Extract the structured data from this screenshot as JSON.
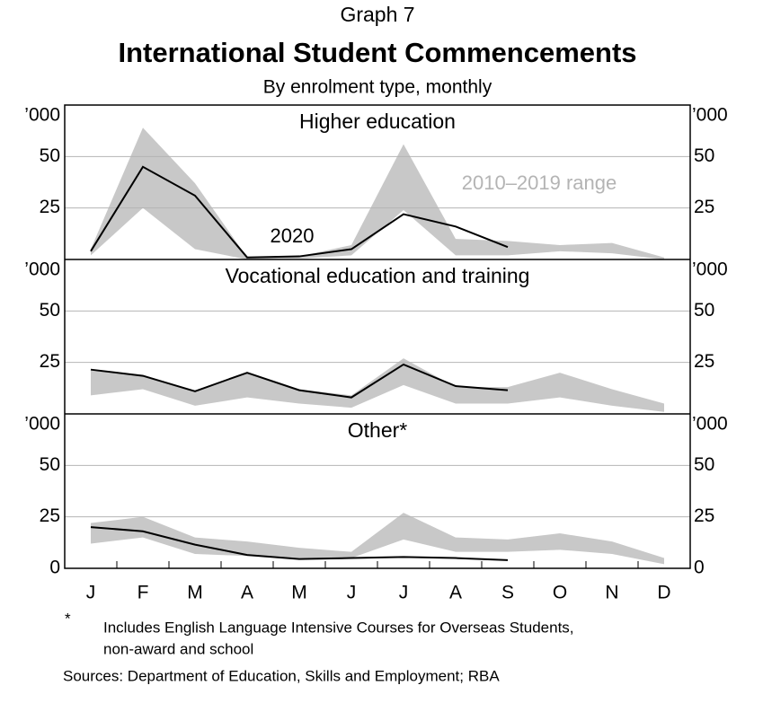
{
  "graph_label": "Graph 7",
  "footnote_marker": "*",
  "footnote": [
    "Includes English Language Intensive Courses for Overseas Students,",
    "non-award and school"
  ],
  "sources": "Sources: Department of Education, Skills and Employment; RBA",
  "chart_data": [
    {
      "type": "line",
      "title": "International Student Commencements",
      "subtitle": "By enrolment type, monthly",
      "panel_title": "Higher education",
      "y_unit_label": "’000",
      "ylim": [
        0,
        75
      ],
      "yticks": [
        25,
        50
      ],
      "grid": true,
      "series": [
        {
          "name": "2020",
          "color": "#000000",
          "values": [
            4,
            45,
            31,
            1,
            1.5,
            5,
            22,
            16,
            6,
            null,
            null,
            null
          ]
        },
        {
          "name": "2010–2019 range",
          "color": "#c8c8c8",
          "low": [
            2,
            25,
            5,
            0,
            0.5,
            2,
            24,
            2,
            2,
            4,
            3,
            0
          ],
          "high": [
            5,
            64,
            37,
            1,
            1.5,
            7,
            56,
            10,
            9,
            7,
            8,
            1
          ]
        }
      ]
    },
    {
      "type": "line",
      "panel_title": "Vocational education and training",
      "y_unit_label": "’000",
      "ylim": [
        0,
        75
      ],
      "yticks": [
        25,
        50
      ],
      "grid": true,
      "series": [
        {
          "color": "#000000",
          "values": [
            21.5,
            18.5,
            11,
            20,
            11.5,
            8,
            24,
            13.5,
            11.5,
            null,
            null,
            null
          ]
        },
        {
          "color": "#c8c8c8",
          "low": [
            9,
            12,
            4,
            8,
            5,
            3,
            14,
            5,
            5,
            8,
            4,
            1
          ],
          "high": [
            21,
            19,
            11,
            20,
            12,
            9,
            27,
            13,
            13,
            20,
            12,
            5
          ]
        }
      ]
    },
    {
      "type": "line",
      "panel_title": "Other*",
      "y_unit_label": "’000",
      "ylim": [
        0,
        75
      ],
      "yticks": [
        0,
        25,
        50
      ],
      "grid": true,
      "categories": [
        "J",
        "F",
        "M",
        "A",
        "M",
        "J",
        "J",
        "A",
        "S",
        "O",
        "N",
        "D"
      ],
      "series": [
        {
          "color": "#000000",
          "values": [
            20,
            18,
            11.5,
            6.5,
            4.5,
            5,
            5.5,
            5,
            4,
            null,
            null,
            null
          ]
        },
        {
          "color": "#c8c8c8",
          "low": [
            12,
            15,
            7,
            6,
            5,
            5,
            14,
            8,
            8,
            9,
            7,
            2
          ],
          "high": [
            22,
            25,
            15,
            13,
            10,
            8,
            27,
            15,
            14,
            17,
            13,
            5
          ]
        }
      ]
    }
  ]
}
